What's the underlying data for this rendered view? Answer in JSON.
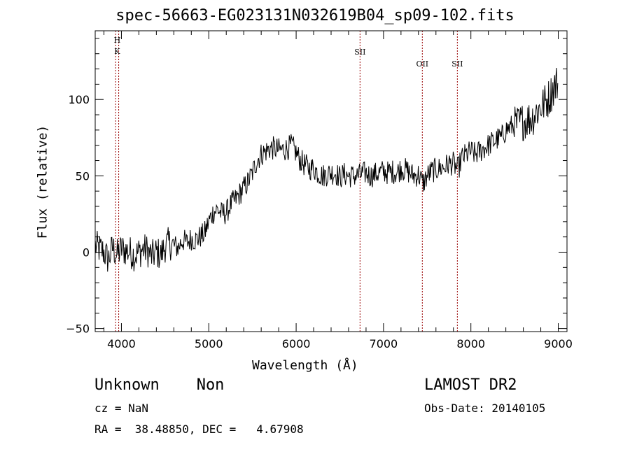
{
  "title": "spec-56663-EG023131N032619B04_sp09-102.fits",
  "info": {
    "classification": "Unknown    Non",
    "cz": "cz = NaN",
    "ra_dec": "RA =  38.48850, DEC =   4.67908",
    "survey": "LAMOST DR2",
    "obs_date": "Obs-Date: 20140105"
  },
  "chart_data": {
    "type": "line",
    "title": "spec-56663-EG023131N032619B04_sp09-102.fits",
    "xlabel": "Wavelength (Å)",
    "ylabel": "Flux (relative)",
    "xlim": [
      3700,
      9100
    ],
    "ylim": [
      -52,
      145
    ],
    "x_ticks": [
      4000,
      5000,
      6000,
      7000,
      8000,
      9000
    ],
    "y_ticks": [
      -50,
      0,
      50,
      100
    ],
    "grid": false,
    "line_color": "#000000",
    "marker_color": "#990000",
    "spectral_lines": [
      {
        "labels": [
          "H",
          "K"
        ],
        "x": [
          3969,
          3934
        ]
      },
      {
        "labels": [
          "SII"
        ],
        "x": [
          6731
        ]
      },
      {
        "labels": [
          "OII"
        ],
        "x": [
          7444
        ]
      },
      {
        "labels": [
          "SII"
        ],
        "x": [
          7845
        ]
      }
    ],
    "x": [
      3700,
      3750,
      3800,
      3850,
      3900,
      3950,
      4000,
      4050,
      4100,
      4150,
      4200,
      4250,
      4300,
      4350,
      4400,
      4450,
      4500,
      4550,
      4600,
      4650,
      4700,
      4750,
      4800,
      4850,
      4900,
      4950,
      5000,
      5050,
      5100,
      5150,
      5200,
      5250,
      5300,
      5350,
      5400,
      5450,
      5500,
      5550,
      5600,
      5650,
      5700,
      5750,
      5800,
      5850,
      5900,
      5950,
      6000,
      6050,
      6100,
      6150,
      6200,
      6250,
      6300,
      6350,
      6400,
      6450,
      6500,
      6550,
      6600,
      6650,
      6700,
      6750,
      6800,
      6850,
      6900,
      6950,
      7000,
      7050,
      7100,
      7150,
      7200,
      7250,
      7300,
      7350,
      7400,
      7450,
      7500,
      7550,
      7600,
      7650,
      7700,
      7750,
      7800,
      7850,
      7900,
      7950,
      8000,
      8050,
      8100,
      8150,
      8200,
      8250,
      8300,
      8350,
      8400,
      8450,
      8500,
      8550,
      8600,
      8650,
      8700,
      8750,
      8800,
      8850,
      8900,
      8950,
      9000
    ],
    "y": [
      4,
      2,
      0,
      -5,
      3,
      -2,
      2,
      1,
      0,
      -2,
      0,
      2,
      1,
      -3,
      0,
      -2,
      4,
      6,
      4,
      3,
      8,
      6,
      9,
      8,
      10,
      12,
      20,
      26,
      28,
      25,
      26,
      31,
      34,
      38,
      42,
      46,
      52,
      60,
      64,
      66,
      68,
      68,
      67,
      67,
      68,
      70,
      65,
      60,
      57,
      55,
      55,
      52,
      50,
      51,
      52,
      52,
      49,
      51,
      50,
      50,
      50,
      51,
      52,
      50,
      51,
      52,
      53,
      52,
      53,
      52,
      55,
      54,
      52,
      50,
      51,
      45,
      50,
      53,
      54,
      55,
      56,
      58,
      58,
      54,
      62,
      64,
      66,
      64,
      66,
      68,
      70,
      72,
      74,
      75,
      80,
      82,
      83,
      84,
      86,
      87,
      88,
      92,
      95,
      98,
      102,
      108,
      112
    ]
  }
}
